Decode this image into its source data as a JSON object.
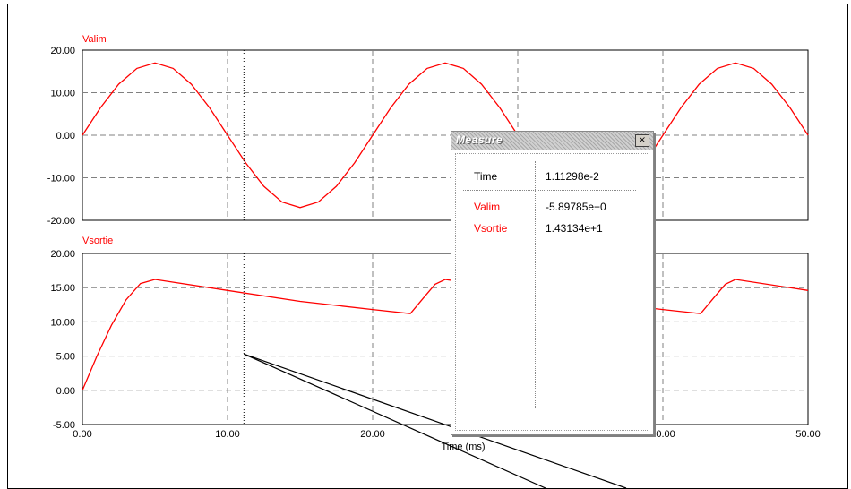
{
  "chart_data": [
    {
      "type": "line",
      "title": "Valim",
      "ylim": [
        -20,
        20
      ],
      "xlim": [
        0,
        50
      ],
      "yticks": [
        "20.00",
        "10.00",
        "0.00",
        "-10.00",
        "-20.00"
      ],
      "grid": true,
      "series": [
        {
          "name": "Valim",
          "color": "#ff0000",
          "x": [
            0,
            1.25,
            2.5,
            3.75,
            5,
            6.25,
            7.5,
            8.75,
            10,
            11.25,
            12.5,
            13.75,
            15,
            16.25,
            17.5,
            18.75,
            20,
            21.25,
            22.5,
            23.75,
            25,
            26.25,
            27.5,
            28.75,
            30,
            31.25,
            32.5,
            33.75,
            35,
            36.25,
            37.5,
            38.75,
            40,
            41.25,
            42.5,
            43.75,
            45,
            46.25,
            47.5,
            48.75,
            50
          ],
          "y": [
            0,
            6.5,
            12,
            15.7,
            17,
            15.7,
            12,
            6.5,
            0,
            -6.5,
            -12,
            -15.7,
            -17,
            -15.7,
            -12,
            -6.5,
            0,
            6.5,
            12,
            15.7,
            17,
            15.7,
            12,
            6.5,
            0,
            -6.5,
            -12,
            -15.7,
            -17,
            -15.7,
            -12,
            -6.5,
            0,
            6.5,
            12,
            15.7,
            17,
            15.7,
            12,
            6.5,
            0
          ]
        }
      ]
    },
    {
      "type": "line",
      "title": "Vsortie",
      "ylim": [
        -5,
        20
      ],
      "xlim": [
        0,
        50
      ],
      "yticks": [
        "20.00",
        "15.00",
        "10.00",
        "5.00",
        "0.00",
        "-5.00"
      ],
      "xticks": [
        "0.00",
        "10.00",
        "20.00",
        "30.00",
        "40.00",
        "50.00"
      ],
      "xlabel": "Time (ms)",
      "grid": true,
      "series": [
        {
          "name": "Vsortie",
          "color": "#ff0000",
          "x": [
            0,
            1,
            2,
            3,
            4,
            5,
            10,
            15,
            20,
            22.6,
            23.5,
            24.3,
            25,
            30,
            35,
            40,
            42.6,
            43.5,
            44.3,
            45,
            50
          ],
          "y": [
            0,
            5,
            9.5,
            13.2,
            15.6,
            16.2,
            14.6,
            13.0,
            11.8,
            11.2,
            13.5,
            15.5,
            16.2,
            14.6,
            13.0,
            11.8,
            11.2,
            13.5,
            15.5,
            16.2,
            14.6
          ]
        }
      ]
    }
  ],
  "cursor": {
    "time": 11.13,
    "marker_value": 5.3
  },
  "measure": {
    "title": "Measure",
    "close_glyph": "×",
    "rows": [
      {
        "label": "Time",
        "value": "1.11298e-2",
        "color": "#000000"
      },
      {
        "label": "Valim",
        "value": "-5.89785e+0",
        "color": "#ff0000"
      },
      {
        "label": "Vsortie",
        "value": "1.43134e+1",
        "color": "#ff0000"
      }
    ]
  }
}
